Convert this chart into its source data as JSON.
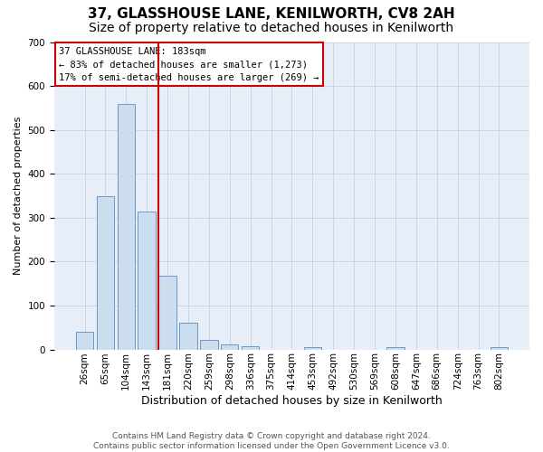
{
  "title": "37, GLASSHOUSE LANE, KENILWORTH, CV8 2AH",
  "subtitle": "Size of property relative to detached houses in Kenilworth",
  "xlabel": "Distribution of detached houses by size in Kenilworth",
  "ylabel": "Number of detached properties",
  "bins": [
    "26sqm",
    "65sqm",
    "104sqm",
    "143sqm",
    "181sqm",
    "220sqm",
    "259sqm",
    "298sqm",
    "336sqm",
    "375sqm",
    "414sqm",
    "453sqm",
    "492sqm",
    "530sqm",
    "569sqm",
    "608sqm",
    "647sqm",
    "686sqm",
    "724sqm",
    "763sqm",
    "802sqm"
  ],
  "bar_values": [
    40,
    350,
    560,
    315,
    168,
    60,
    22,
    12,
    8,
    0,
    0,
    5,
    0,
    0,
    0,
    5,
    0,
    0,
    0,
    0,
    5
  ],
  "bar_color": "#ccddf0",
  "bar_edge_color": "#6699cc",
  "vline_color": "#cc0000",
  "annotation_text": "37 GLASSHOUSE LANE: 183sqm\n← 83% of detached houses are smaller (1,273)\n17% of semi-detached houses are larger (269) →",
  "annotation_box_color": "#ffffff",
  "annotation_box_edge": "#cc0000",
  "ylim": [
    0,
    700
  ],
  "yticks": [
    0,
    100,
    200,
    300,
    400,
    500,
    600,
    700
  ],
  "title_fontsize": 11,
  "subtitle_fontsize": 10,
  "xlabel_fontsize": 9,
  "ylabel_fontsize": 8,
  "tick_fontsize": 7.5,
  "footer_text": "Contains HM Land Registry data © Crown copyright and database right 2024.\nContains public sector information licensed under the Open Government Licence v3.0.",
  "bg_color": "#ffffff",
  "grid_color": "#ccd5e8",
  "plot_bg_color": "#e8eef8"
}
